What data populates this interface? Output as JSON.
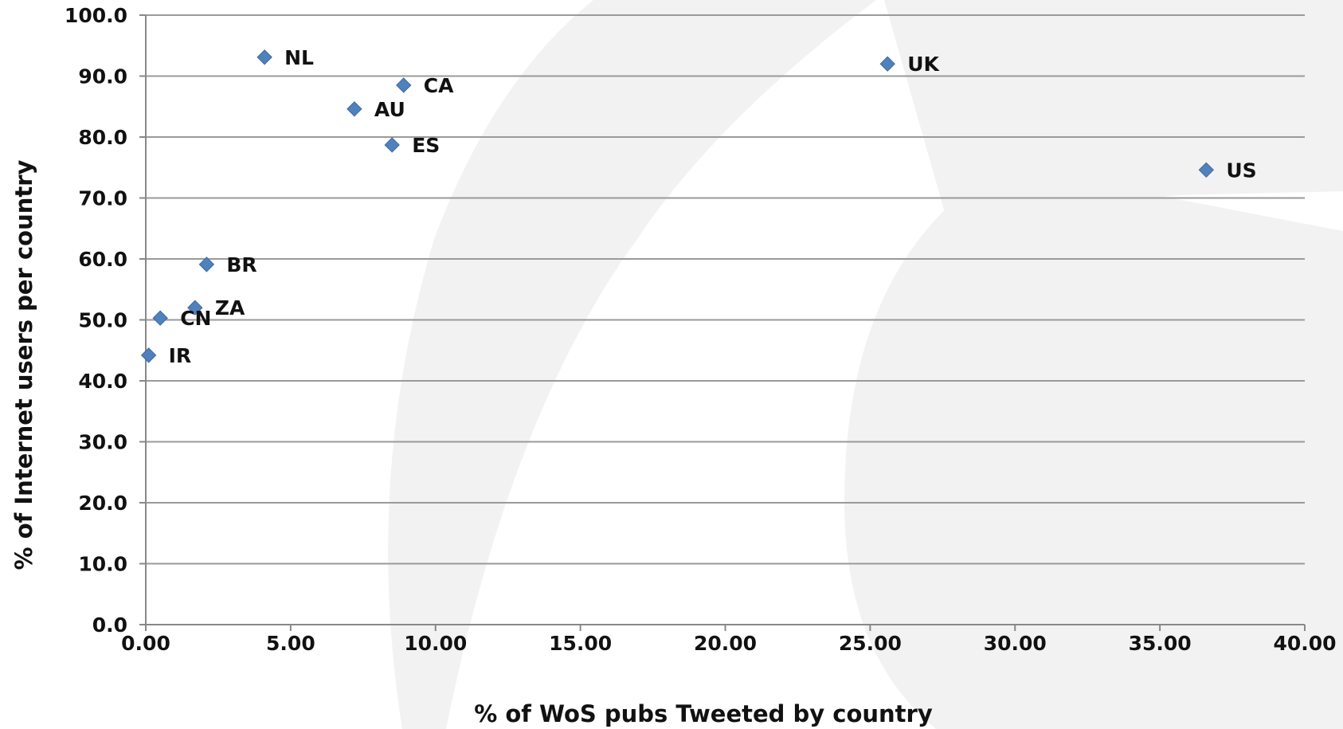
{
  "chart_data": {
    "type": "scatter",
    "title": "",
    "xlabel": "% of WoS pubs Tweeted by country",
    "ylabel": "% of Internet users  per country",
    "xlim": [
      0,
      40
    ],
    "ylim": [
      0,
      100
    ],
    "grid": "horizontal",
    "marker": "diamond",
    "marker_color": "#4f81bd",
    "x_ticks": [
      "0.00",
      "5.00",
      "10.00",
      "15.00",
      "20.00",
      "25.00",
      "30.00",
      "35.00",
      "40.00"
    ],
    "y_ticks": [
      "0.0",
      "10.0",
      "20.0",
      "30.0",
      "40.0",
      "50.0",
      "60.0",
      "70.0",
      "80.0",
      "90.0",
      "100.0"
    ],
    "points": [
      {
        "label": "NL",
        "x": 4.1,
        "y": 93.1
      },
      {
        "label": "CA",
        "x": 8.9,
        "y": 88.5
      },
      {
        "label": "AU",
        "x": 7.2,
        "y": 84.6
      },
      {
        "label": "ES",
        "x": 8.5,
        "y": 78.7
      },
      {
        "label": "UK",
        "x": 25.6,
        "y": 92.0
      },
      {
        "label": "US",
        "x": 36.6,
        "y": 74.6
      },
      {
        "label": "BR",
        "x": 2.1,
        "y": 59.1
      },
      {
        "label": "ZA",
        "x": 1.7,
        "y": 52.0
      },
      {
        "label": "CN",
        "x": 0.5,
        "y": 50.3
      },
      {
        "label": "IR",
        "x": 0.1,
        "y": 44.2
      }
    ]
  }
}
